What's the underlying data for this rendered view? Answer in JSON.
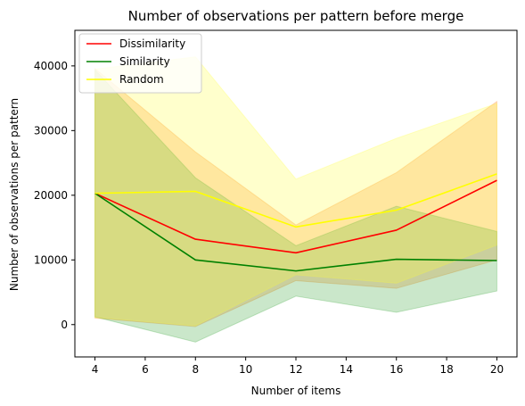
{
  "chart_data": {
    "type": "line",
    "title": "Number of observations per pattern before merge",
    "xlabel": "Number of items",
    "ylabel": "Number of observations per pattern",
    "x": [
      4,
      8,
      12,
      16,
      20
    ],
    "xlim": [
      3.2,
      20.8
    ],
    "ylim": [
      -5000,
      45500
    ],
    "xticks": [
      4,
      6,
      8,
      10,
      12,
      14,
      16,
      18,
      20
    ],
    "yticks": [
      0,
      10000,
      20000,
      30000,
      40000
    ],
    "grid": false,
    "legend": "top-left",
    "series": [
      {
        "name": "Dissimilarity",
        "color": "#ff0000",
        "band_color": "#ff7f0e",
        "values": [
          20300,
          13200,
          11100,
          14600,
          22300
        ],
        "lower": [
          1000,
          -300,
          6800,
          5600,
          10000
        ],
        "upper": [
          39600,
          26700,
          15400,
          23500,
          34500
        ]
      },
      {
        "name": "Similarity",
        "color": "#008000",
        "band_color": "#2ca02c",
        "values": [
          20300,
          10000,
          8300,
          10100,
          9900
        ],
        "lower": [
          1200,
          -2700,
          4400,
          1900,
          5200
        ],
        "upper": [
          39400,
          22700,
          12200,
          18300,
          14400
        ]
      },
      {
        "name": "Random",
        "color": "#ffff00",
        "band_color": "#ffff33",
        "values": [
          20300,
          20600,
          15100,
          17700,
          23300
        ],
        "lower": [
          1100,
          -200,
          7700,
          6400,
          12300
        ],
        "upper": [
          39500,
          41400,
          22500,
          28800,
          34200
        ]
      }
    ]
  }
}
